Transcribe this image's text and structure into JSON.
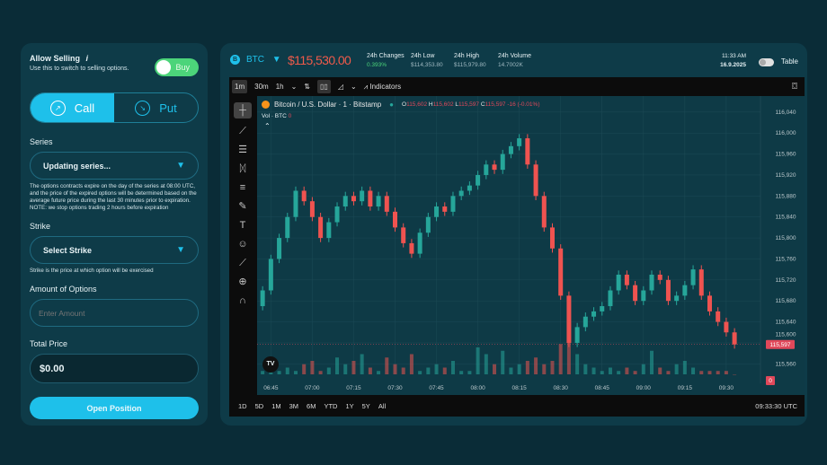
{
  "order": {
    "allow_selling_label": "Allow Selling",
    "info_icon": "i",
    "allow_selling_hint": "Use this to switch to selling options.",
    "mode_toggle_label": "Buy",
    "call_label": "Call",
    "put_label": "Put",
    "series_label": "Series",
    "series_value": "Updating series...",
    "series_note": "The options contracts expire on the day of the series at 08:00 UTC, and the price of the expired options will be determined based on the average future price during the last 30 minutes prior to expiration. NOTE: we stop options trading 2 hours before expiration",
    "strike_label": "Strike",
    "strike_value": "Select Strike",
    "strike_note": "Strike is the price at which option will be exercised",
    "amount_label": "Amount of Options",
    "amount_placeholder": "Enter Amount",
    "total_label": "Total Price",
    "total_value": "$0.00",
    "submit_label": "Open Position"
  },
  "header": {
    "coin_icon": "B",
    "symbol": "BTC",
    "price": "$115,530.00",
    "stats": [
      {
        "k": "24h Changes",
        "v": "0.393%"
      },
      {
        "k": "24h Low",
        "v": "$114,353.80"
      },
      {
        "k": "24h High",
        "v": "$115,979.80"
      },
      {
        "k": "24h Volume",
        "v": "14.7002K"
      }
    ],
    "time": "11:33 AM",
    "date": "16.9.2025",
    "table_label": "Table"
  },
  "toolbar": {
    "intervals": [
      "1m",
      "30m",
      "1h"
    ],
    "indicators_label": "Indicators"
  },
  "legend": {
    "title": "Bitcoin / U.S. Dollar · 1 · Bitstamp",
    "o": "115,602",
    "h": "115,602",
    "l": "115,597",
    "c": "115,597",
    "chg": "-16 (-0.01%)",
    "vol_label": "Vol · BTC",
    "vol_value": "0"
  },
  "ranges": [
    "1D",
    "5D",
    "1M",
    "3M",
    "6M",
    "YTD",
    "1Y",
    "5Y",
    "All"
  ],
  "clock": "09:33:30 UTC",
  "colors": {
    "accent": "#1ec0ea",
    "up": "#26a69a",
    "down": "#ef5350",
    "price_price": "#e0485a"
  },
  "chart_data": {
    "type": "candlestick",
    "interval_minutes": 3,
    "x_ticks": [
      "06:45",
      "07:00",
      "07:15",
      "07:30",
      "07:45",
      "08:00",
      "08:15",
      "08:30",
      "08:45",
      "09:00",
      "09:15",
      "09:30"
    ],
    "y_ticks": [
      116040,
      116000,
      115960,
      115920,
      115880,
      115840,
      115800,
      115760,
      115720,
      115680,
      115640,
      115600,
      115560
    ],
    "ylim": [
      115540,
      116050
    ],
    "last_price_label": "115,597",
    "volume_axis_label": "0",
    "times": [
      "06:42",
      "06:45",
      "06:48",
      "06:51",
      "06:54",
      "06:57",
      "07:00",
      "07:03",
      "07:06",
      "07:09",
      "07:12",
      "07:15",
      "07:18",
      "07:21",
      "07:24",
      "07:27",
      "07:30",
      "07:33",
      "07:36",
      "07:39",
      "07:42",
      "07:45",
      "07:48",
      "07:51",
      "07:54",
      "07:57",
      "08:00",
      "08:03",
      "08:06",
      "08:09",
      "08:12",
      "08:15",
      "08:18",
      "08:21",
      "08:24",
      "08:27",
      "08:30",
      "08:33",
      "08:36",
      "08:39",
      "08:42",
      "08:45",
      "08:48",
      "08:51",
      "08:54",
      "08:57",
      "09:00",
      "09:03",
      "09:06",
      "09:09",
      "09:12",
      "09:15",
      "09:18",
      "09:21",
      "09:24",
      "09:27",
      "09:30",
      "09:33"
    ],
    "close": [
      115700,
      115760,
      115800,
      115840,
      115890,
      115870,
      115840,
      115800,
      115830,
      115860,
      115880,
      115870,
      115890,
      115860,
      115880,
      115850,
      115820,
      115790,
      115770,
      115810,
      115840,
      115860,
      115850,
      115880,
      115890,
      115900,
      115920,
      115940,
      115930,
      115960,
      115975,
      115990,
      115940,
      115880,
      115820,
      115780,
      115690,
      115600,
      115630,
      115650,
      115660,
      115670,
      115700,
      115730,
      115710,
      115680,
      115700,
      115730,
      115720,
      115680,
      115690,
      115710,
      115740,
      115690,
      115660,
      115640,
      115620,
      115597
    ],
    "volume": [
      1,
      1,
      1,
      2,
      1,
      3,
      4,
      1,
      2,
      5,
      3,
      4,
      6,
      2,
      1,
      5,
      3,
      2,
      6,
      1,
      2,
      3,
      2,
      4,
      1,
      1,
      8,
      6,
      3,
      7,
      2,
      3,
      4,
      5,
      3,
      4,
      9,
      12,
      6,
      3,
      2,
      1,
      2,
      1,
      2,
      1,
      3,
      7,
      2,
      1,
      3,
      4,
      2,
      1,
      1,
      1,
      1,
      0
    ]
  }
}
